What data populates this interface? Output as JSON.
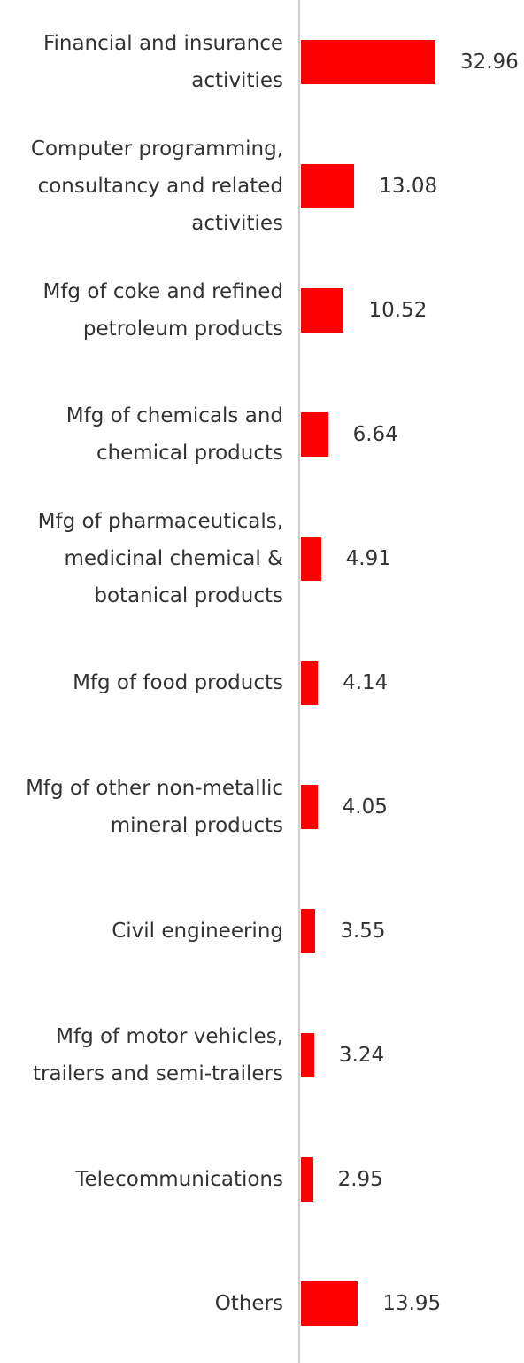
{
  "chart_data": {
    "type": "hbar",
    "color": "#ff0000",
    "categories": [
      "Financial and insurance activities",
      "Computer programming, consultancy and related activities",
      "Mfg of coke and refined petroleum products",
      "Mfg of chemicals and chemical products",
      "Mfg of pharmaceuticals, medicinal chemical & botanical products",
      "Mfg of food products",
      "Mfg of other non-metallic mineral products",
      "Civil engineering",
      "Mfg of motor vehicles, trailers and semi-trailers",
      "Telecommunications",
      "Others"
    ],
    "values": [
      32.96,
      13.08,
      10.52,
      6.64,
      4.91,
      4.14,
      4.05,
      3.55,
      3.24,
      2.95,
      13.95
    ]
  }
}
